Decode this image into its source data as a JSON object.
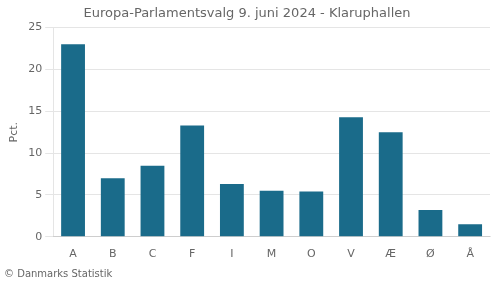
{
  "chart_data": {
    "type": "bar",
    "title": "Europa-Parlamentsvalg 9. juni 2024 - Klaruphallen",
    "categories": [
      "A",
      "B",
      "C",
      "F",
      "I",
      "M",
      "O",
      "V",
      "Æ",
      "Ø",
      "Å"
    ],
    "values": [
      23.0,
      7.0,
      8.5,
      13.3,
      6.3,
      5.5,
      5.4,
      14.3,
      12.5,
      3.2,
      1.5
    ],
    "color": "#1a6b8a",
    "ylabel": "Pct.",
    "footer": "© Danmarks Statistik",
    "ylim": [
      0,
      25
    ],
    "yticks": [
      0,
      5,
      10,
      15,
      20,
      25
    ],
    "grid": true
  }
}
